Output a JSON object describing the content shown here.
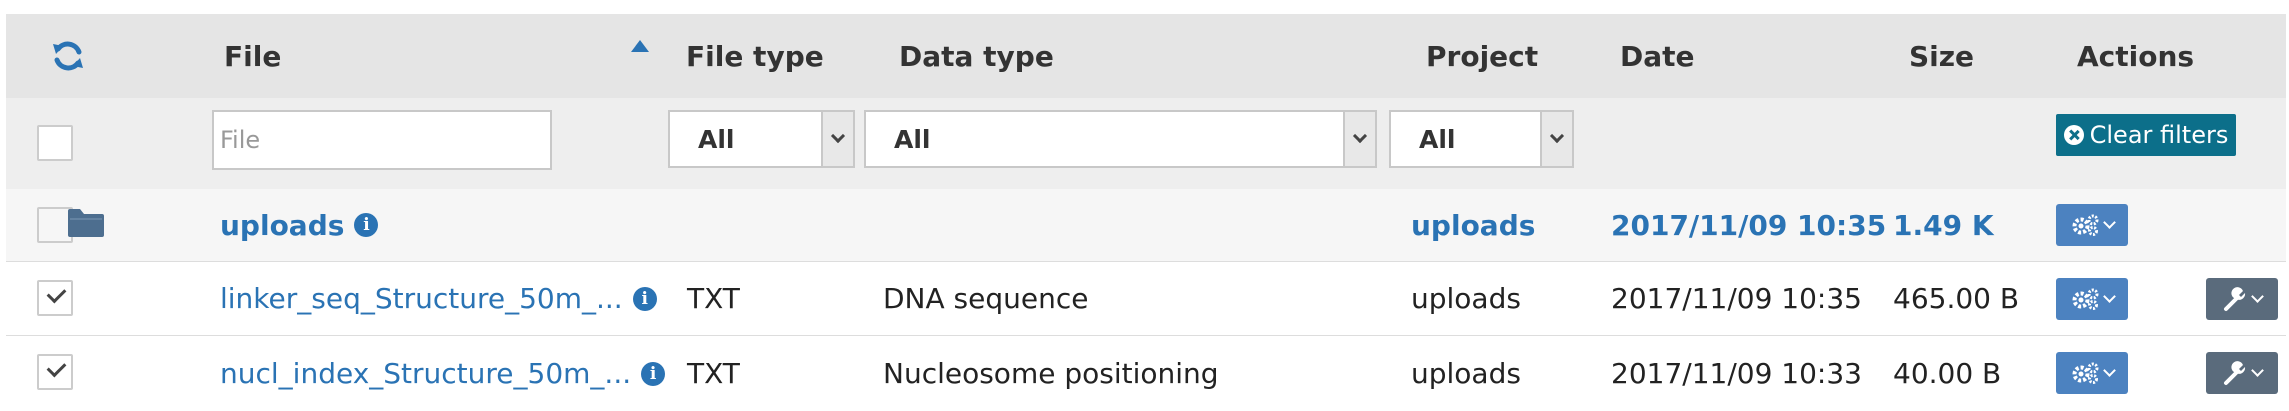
{
  "header": {
    "refresh_icon": "refresh-icon",
    "file": "File",
    "file_type": "File type",
    "data_type": "Data type",
    "project": "Project",
    "date": "Date",
    "size": "Size",
    "actions": "Actions",
    "sort_direction": "ascending"
  },
  "filters": {
    "file_placeholder": "File",
    "file_type_value": "All",
    "data_type_value": "All",
    "project_value": "All",
    "clear_label": "Clear filters"
  },
  "folder": {
    "name": "uploads",
    "project": "uploads",
    "date": "2017/11/09 10:35",
    "size": "1.49 K",
    "checked": false
  },
  "files": [
    {
      "name": "linker_seq_Structure_50m_...",
      "file_type": "TXT",
      "data_type": "DNA sequence",
      "project": "uploads",
      "date": "2017/11/09 10:35",
      "size": "465.00 B",
      "checked": true
    },
    {
      "name": "nucl_index_Structure_50m_...",
      "file_type": "TXT",
      "data_type": "Nucleosome positioning",
      "project": "uploads",
      "date": "2017/11/09 10:33",
      "size": "40.00 B",
      "checked": true
    }
  ],
  "colors": {
    "link": "#2a73b4",
    "clear_button": "#0c6f8a",
    "action_button": "#4c82c0",
    "tool_button": "#5a6b7c"
  }
}
